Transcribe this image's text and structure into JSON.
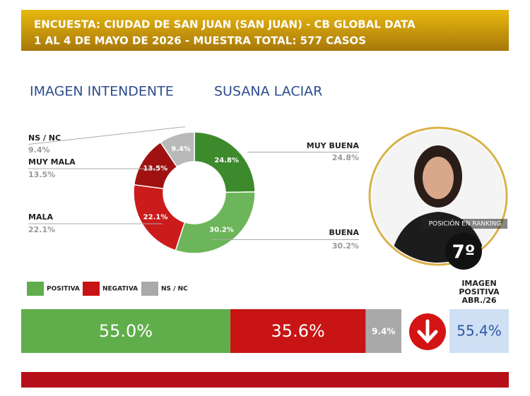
{
  "header": {
    "line1": "ENCUESTA: CIUDAD DE SAN JUAN (SAN JUAN) - CB GLOBAL DATA",
    "line2": "1 AL 4 DE MAYO DE 2026 - MUESTRA TOTAL: 577 CASOS"
  },
  "chart_data": [
    {
      "type": "donut",
      "title": "IMAGEN INTENDENTE",
      "subtitle": "SUSANA LACIAR",
      "categories": [
        "MUY BUENA",
        "BUENA",
        "MALA",
        "MUY MALA",
        "NS / NC"
      ],
      "values": [
        24.8,
        30.2,
        22.1,
        13.5,
        9.4
      ],
      "value_labels": [
        "24.8%",
        "30.2%",
        "22.1%",
        "13.5%",
        "9.4%"
      ],
      "colors": [
        "#3d8a2c",
        "#6cb55a",
        "#cc1b1b",
        "#a01212",
        "#b9b9b9"
      ]
    },
    {
      "type": "stacked-bar",
      "series": [
        {
          "name": "POSITIVA",
          "color": "#5fae4b",
          "values": [
            55.0
          ],
          "value_labels": [
            "55.0%"
          ]
        },
        {
          "name": "NEGATIVA",
          "color": "#c81414",
          "values": [
            35.6
          ],
          "value_labels": [
            "35.6%"
          ]
        },
        {
          "name": "NS / NC",
          "color": "#a9a9a9",
          "values": [
            9.4
          ],
          "value_labels": [
            "9.4%"
          ]
        }
      ]
    }
  ],
  "ranking": {
    "label": "POSICIÓN EN RANKING",
    "value": "7º"
  },
  "previous": {
    "label": "IMAGEN POSITIVA ABR./26",
    "value": "55.4%"
  }
}
